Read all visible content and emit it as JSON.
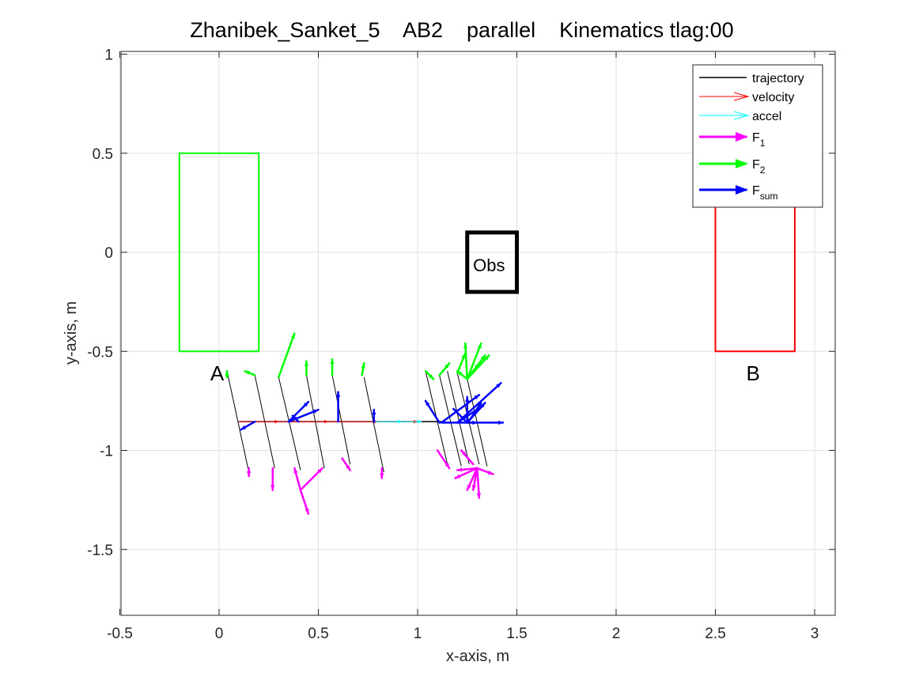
{
  "chart_data": {
    "type": "line",
    "title": "Zhanibek_Sanket_5    AB2    parallel    Kinematics tlag:00",
    "xlabel": "x-axis, m",
    "ylabel": "y-axis, m",
    "xlim": [
      -0.5,
      3.1
    ],
    "ylim": [
      -1.83,
      1.02
    ],
    "xticks": [
      -0.5,
      0,
      0.5,
      1,
      1.5,
      2,
      2.5,
      3
    ],
    "xtick_labels": [
      "-0.5",
      "0",
      "0.5",
      "1",
      "1.5",
      "2",
      "2.5",
      "3"
    ],
    "yticks": [
      1,
      0.5,
      0,
      -0.5,
      -1,
      -1.5
    ],
    "ytick_labels": [
      "1",
      "0.5",
      "0",
      "-0.5",
      "-1",
      "-1.5"
    ],
    "grid": true,
    "legend_position": "top-right",
    "legend": [
      {
        "label": "trajectory",
        "sub": "",
        "color": "#000000",
        "style": "line"
      },
      {
        "label": "velocity",
        "sub": "",
        "color": "#ff0000",
        "style": "thin-arrow"
      },
      {
        "label": "accel",
        "sub": "",
        "color": "#00ffff",
        "style": "thin-arrow"
      },
      {
        "label": "F",
        "sub": "1",
        "color": "#ff00ff",
        "style": "thick-arrow"
      },
      {
        "label": "F",
        "sub": "2",
        "color": "#00ff00",
        "style": "thick-arrow"
      },
      {
        "label": "F",
        "sub": "sum",
        "color": "#0000ff",
        "style": "thick-arrow"
      }
    ],
    "regions": [
      {
        "name": "A",
        "x": [
          -0.2,
          0.2
        ],
        "y": [
          -0.5,
          0.5
        ],
        "color": "#00ff00",
        "label_at": [
          -0.01,
          -0.61
        ]
      },
      {
        "name": "B",
        "x": [
          2.5,
          2.9
        ],
        "y": [
          -0.5,
          0.5
        ],
        "color": "#ff0000",
        "label_at": [
          2.69,
          -0.61
        ]
      },
      {
        "name": "Obs",
        "x": [
          1.25,
          1.5
        ],
        "y": [
          -0.2,
          0.1
        ],
        "color": "#000000",
        "label_at": [
          1.36,
          -0.06
        ]
      }
    ],
    "trajectory": {
      "x": [
        0.1,
        1.12
      ],
      "y": [
        -0.855,
        -0.855
      ]
    },
    "velocity_arrows": [
      {
        "x": 0.1,
        "y": -0.855,
        "dx": 0.2,
        "dy": 0
      },
      {
        "x": 0.3,
        "y": -0.855,
        "dx": 0.25,
        "dy": 0
      },
      {
        "x": 0.55,
        "y": -0.855,
        "dx": 0.25,
        "dy": 0
      },
      {
        "x": 0.8,
        "y": -0.855,
        "dx": 0.2,
        "dy": 0
      }
    ],
    "accel_arrows": [
      {
        "x": 0.78,
        "y": -0.855,
        "dx": 0.14,
        "dy": 0
      },
      {
        "x": 0.92,
        "y": -0.855,
        "dx": 0.1,
        "dy": 0
      }
    ],
    "robot_bodies": [
      {
        "x1": 0.04,
        "y1": -0.6,
        "x2": 0.15,
        "y2": -1.11
      },
      {
        "x1": 0.18,
        "y1": -0.62,
        "x2": 0.28,
        "y2": -1.09
      },
      {
        "x1": 0.3,
        "y1": -0.63,
        "x2": 0.41,
        "y2": -1.1
      },
      {
        "x1": 0.44,
        "y1": -0.62,
        "x2": 0.53,
        "y2": -1.09
      },
      {
        "x1": 0.57,
        "y1": -0.62,
        "x2": 0.66,
        "y2": -1.07
      },
      {
        "x1": 0.73,
        "y1": -0.63,
        "x2": 0.83,
        "y2": -1.11
      },
      {
        "x1": 1.04,
        "y1": -0.6,
        "x2": 1.15,
        "y2": -1.07
      },
      {
        "x1": 1.11,
        "y1": -0.62,
        "x2": 1.22,
        "y2": -1.08
      },
      {
        "x1": 1.15,
        "y1": -0.6,
        "x2": 1.26,
        "y2": -1.07
      },
      {
        "x1": 1.2,
        "y1": -0.61,
        "x2": 1.31,
        "y2": -1.07
      },
      {
        "x1": 1.25,
        "y1": -0.64,
        "x2": 1.35,
        "y2": -1.08
      }
    ],
    "force_F1": [
      {
        "x": 0.15,
        "y": -1.09,
        "dx": 0.0,
        "dy": -0.04
      },
      {
        "x": 0.27,
        "y": -1.09,
        "dx": 0.0,
        "dy": -0.11
      },
      {
        "x": 0.41,
        "y": -1.2,
        "dx": 0.04,
        "dy": -0.12
      },
      {
        "x": 0.41,
        "y": -1.2,
        "dx": -0.03,
        "dy": 0.11
      },
      {
        "x": 0.41,
        "y": -1.2,
        "dx": 0.11,
        "dy": 0.11
      },
      {
        "x": 0.62,
        "y": -1.04,
        "dx": 0.04,
        "dy": -0.06
      },
      {
        "x": 0.82,
        "y": -1.09,
        "dx": 0.0,
        "dy": -0.05
      },
      {
        "x": 1.1,
        "y": -1.0,
        "dx": 0.06,
        "dy": -0.09
      },
      {
        "x": 1.3,
        "y": -1.09,
        "dx": -0.11,
        "dy": -0.05
      },
      {
        "x": 1.3,
        "y": -1.09,
        "dx": 0.08,
        "dy": -0.03
      },
      {
        "x": 1.3,
        "y": -1.09,
        "dx": -0.05,
        "dy": -0.11
      },
      {
        "x": 1.3,
        "y": -1.09,
        "dx": 0.01,
        "dy": -0.15
      },
      {
        "x": 1.3,
        "y": -1.09,
        "dx": -0.1,
        "dy": -0.01
      },
      {
        "x": 1.3,
        "y": -1.09,
        "dx": -0.02,
        "dy": -0.11
      },
      {
        "x": 1.28,
        "y": -1.07,
        "dx": -0.06,
        "dy": 0.07
      }
    ],
    "force_F2": [
      {
        "x": 0.04,
        "y": -0.63,
        "dx": 0.0,
        "dy": 0.03
      },
      {
        "x": 0.18,
        "y": -0.62,
        "dx": -0.05,
        "dy": 0.02
      },
      {
        "x": 0.3,
        "y": -0.63,
        "dx": 0.08,
        "dy": 0.22
      },
      {
        "x": 0.44,
        "y": -0.62,
        "dx": 0.0,
        "dy": 0.07
      },
      {
        "x": 0.57,
        "y": -0.62,
        "dx": 0.0,
        "dy": 0.08
      },
      {
        "x": 0.72,
        "y": -0.62,
        "dx": 0.01,
        "dy": 0.06
      },
      {
        "x": 1.04,
        "y": -0.6,
        "dx": 0.04,
        "dy": -0.04
      },
      {
        "x": 1.11,
        "y": -0.62,
        "dx": 0.05,
        "dy": 0.06
      },
      {
        "x": 1.2,
        "y": -0.61,
        "dx": 0.04,
        "dy": 0.1
      },
      {
        "x": 1.25,
        "y": -0.64,
        "dx": 0.07,
        "dy": 0.18
      },
      {
        "x": 1.25,
        "y": -0.64,
        "dx": 0.11,
        "dy": 0.12
      },
      {
        "x": 1.25,
        "y": -0.64,
        "dx": -0.01,
        "dy": 0.18
      },
      {
        "x": 1.25,
        "y": -0.64,
        "dx": 0.06,
        "dy": 0.08
      },
      {
        "x": 1.25,
        "y": -0.64,
        "dx": -0.05,
        "dy": 0.04
      },
      {
        "x": 1.25,
        "y": -0.64,
        "dx": 0.09,
        "dy": 0.12
      }
    ],
    "force_Fsum": [
      {
        "x": 0.18,
        "y": -0.855,
        "dx": -0.07,
        "dy": -0.04
      },
      {
        "x": 0.35,
        "y": -0.855,
        "dx": 0.1,
        "dy": 0.1
      },
      {
        "x": 0.35,
        "y": -0.855,
        "dx": 0.15,
        "dy": 0.06
      },
      {
        "x": 0.4,
        "y": -0.855,
        "dx": -0.03,
        "dy": 0.03
      },
      {
        "x": 0.6,
        "y": -0.855,
        "dx": 0.0,
        "dy": 0.15
      },
      {
        "x": 0.78,
        "y": -0.855,
        "dx": 0.0,
        "dy": 0.06
      },
      {
        "x": 1.11,
        "y": -0.86,
        "dx": -0.07,
        "dy": 0.11
      },
      {
        "x": 1.12,
        "y": -0.86,
        "dx": 0.31,
        "dy": 0.0
      },
      {
        "x": 1.12,
        "y": -0.86,
        "dx": 0.19,
        "dy": 0.14
      },
      {
        "x": 1.2,
        "y": -0.86,
        "dx": 0.22,
        "dy": 0.2
      },
      {
        "x": 1.2,
        "y": -0.86,
        "dx": 0.12,
        "dy": 0.08
      },
      {
        "x": 1.25,
        "y": -0.86,
        "dx": 0.09,
        "dy": 0.1
      },
      {
        "x": 1.25,
        "y": -0.86,
        "dx": 0.05,
        "dy": 0.0
      },
      {
        "x": 1.25,
        "y": -0.86,
        "dx": 0.0,
        "dy": 0.13
      },
      {
        "x": 1.24,
        "y": -0.85,
        "dx": -0.06,
        "dy": 0.06
      },
      {
        "x": 1.26,
        "y": -0.85,
        "dx": 0.06,
        "dy": 0.09
      }
    ]
  }
}
